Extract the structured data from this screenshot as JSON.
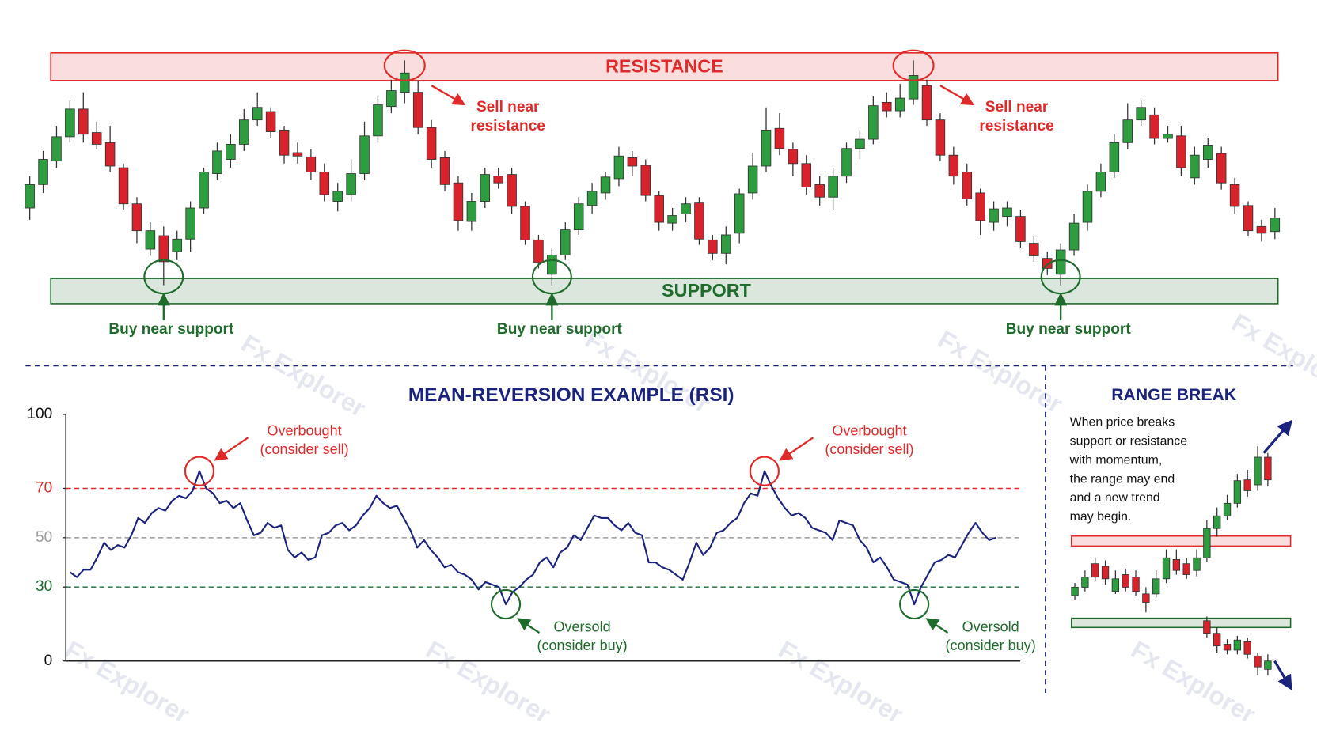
{
  "chart_data": [
    {
      "type": "candlestick",
      "open": [
        114,
        142,
        170,
        199,
        232,
        204,
        192,
        162,
        119,
        65,
        81,
        62,
        77,
        114,
        155,
        172,
        190,
        219,
        229,
        207,
        180,
        175,
        157,
        122,
        130,
        155,
        200,
        235,
        252,
        252,
        210,
        174,
        144,
        98,
        122,
        152,
        154,
        116,
        76,
        35,
        58,
        88,
        117,
        132,
        149,
        174,
        165,
        129,
        96,
        107,
        120,
        76,
        60,
        84,
        132,
        164,
        209,
        184,
        167,
        142,
        127,
        152,
        185,
        196,
        240,
        230,
        244,
        260,
        219,
        177,
        157,
        132,
        97,
        104,
        104,
        72,
        54,
        35,
        64,
        97,
        134,
        157,
        192,
        219,
        225,
        197,
        200,
        150,
        172,
        179,
        142,
        117,
        92,
        86
      ],
      "high": [
        152,
        182,
        212,
        242,
        252,
        217,
        212,
        167,
        127,
        97,
        92,
        87,
        122,
        162,
        192,
        202,
        232,
        252,
        234,
        212,
        192,
        184,
        167,
        144,
        172,
        217,
        247,
        267,
        290,
        266,
        219,
        182,
        152,
        132,
        162,
        162,
        162,
        122,
        82,
        67,
        97,
        127,
        144,
        157,
        187,
        182,
        172,
        134,
        114,
        127,
        127,
        82,
        92,
        137,
        180,
        234,
        227,
        192,
        177,
        152,
        162,
        192,
        207,
        247,
        252,
        262,
        290,
        267,
        227,
        187,
        167,
        137,
        122,
        122,
        112,
        80,
        62,
        72,
        107,
        142,
        167,
        202,
        239,
        242,
        234,
        212,
        212,
        187,
        197,
        187,
        150,
        122,
        100,
        114
      ],
      "low": [
        100,
        132,
        162,
        192,
        192,
        184,
        157,
        112,
        72,
        57,
        22,
        52,
        62,
        107,
        147,
        162,
        182,
        212,
        197,
        167,
        167,
        147,
        122,
        110,
        122,
        147,
        192,
        227,
        239,
        202,
        162,
        134,
        87,
        87,
        114,
        137,
        107,
        70,
        42,
        22,
        52,
        82,
        107,
        124,
        140,
        152,
        122,
        87,
        87,
        97,
        70,
        52,
        47,
        72,
        124,
        157,
        177,
        152,
        130,
        117,
        112,
        144,
        172,
        190,
        222,
        222,
        237,
        212,
        170,
        142,
        117,
        82,
        87,
        92,
        67,
        50,
        34,
        22,
        57,
        87,
        127,
        150,
        184,
        212,
        190,
        192,
        152,
        142,
        162,
        136,
        107,
        80,
        74,
        77
      ],
      "close": [
        142,
        172,
        199,
        232,
        202,
        190,
        164,
        119,
        87,
        87,
        50,
        77,
        114,
        157,
        182,
        190,
        219,
        234,
        205,
        177,
        176,
        157,
        130,
        134,
        155,
        200,
        237,
        254,
        275,
        210,
        172,
        142,
        99,
        122,
        154,
        144,
        116,
        76,
        49,
        58,
        88,
        119,
        134,
        151,
        176,
        164,
        129,
        97,
        105,
        119,
        77,
        60,
        82,
        131,
        164,
        207,
        185,
        167,
        139,
        127,
        152,
        185,
        196,
        236,
        230,
        245,
        272,
        219,
        177,
        152,
        125,
        99,
        113,
        114,
        74,
        57,
        42,
        64,
        96,
        134,
        157,
        192,
        219,
        234,
        197,
        202,
        162,
        177,
        189,
        144,
        116,
        87,
        84,
        102
      ],
      "ylim": [
        0,
        299
      ],
      "up_color": "#2e9d3f",
      "down_color": "#d8232c",
      "bands": [
        {
          "label": "RESISTANCE",
          "range": [
            266,
            299
          ],
          "color": "#e02a2a",
          "annotations": {
            "text": [
              "Sell near",
              "resistance"
            ],
            "at": [
              28,
              66
            ]
          }
        },
        {
          "label": "SUPPORT",
          "range": [
            0,
            30
          ],
          "color": "#1e6b2b",
          "annotations": {
            "text": [
              "Buy near support"
            ],
            "at": [
              10,
              39,
              77
            ]
          }
        }
      ]
    },
    {
      "type": "line",
      "title": "MEAN-REVERSION EXAMPLE (RSI)",
      "values": [
        36,
        34,
        37,
        37,
        42,
        48,
        45,
        47,
        46,
        51,
        58,
        56,
        60,
        62,
        61,
        65,
        67,
        66,
        69,
        77,
        70,
        68,
        64,
        65,
        62,
        64,
        57,
        51,
        52,
        56,
        54,
        55,
        45,
        42,
        44,
        41,
        42,
        51,
        52,
        55,
        56,
        53,
        55,
        59,
        62,
        67,
        64,
        62,
        63,
        58,
        53,
        46,
        49,
        45,
        42,
        38,
        39,
        36,
        35,
        33,
        29,
        32,
        31,
        30,
        23,
        28,
        30,
        33,
        35,
        40,
        42,
        38,
        44,
        46,
        51,
        49,
        54,
        59,
        58,
        58,
        55,
        53,
        56,
        52,
        51,
        40,
        40,
        38,
        37,
        35,
        33,
        40,
        48,
        43,
        46,
        52,
        53,
        56,
        58,
        64,
        68,
        67,
        77,
        71,
        66,
        62,
        59,
        60,
        58,
        54,
        53,
        52,
        49,
        57,
        56,
        55,
        49,
        46,
        40,
        42,
        38,
        33,
        32,
        31,
        23,
        30,
        35,
        40,
        41,
        43,
        42,
        47,
        52,
        56,
        52,
        49,
        50
      ],
      "color": "#1a237e",
      "ylim": [
        0,
        100
      ],
      "yticks": [
        0,
        30,
        50,
        70,
        100
      ],
      "levels": [
        {
          "value": 70,
          "color": "#e02a2a"
        },
        {
          "value": 50,
          "color": "#9a9a9a"
        },
        {
          "value": 30,
          "color": "#1e6b2b"
        }
      ],
      "annotations": [
        {
          "text": [
            "Overbought",
            "(consider sell)"
          ],
          "at": [
            19,
            102
          ],
          "color": "#e02a2a"
        },
        {
          "text": [
            "Oversold",
            "(consider buy)"
          ],
          "at": [
            64,
            124
          ],
          "color": "#1e6b2b"
        }
      ]
    },
    {
      "type": "candlestick",
      "title": "RANGE BREAK",
      "description": [
        "When price breaks",
        "support or resistance",
        "with momentum,",
        "the range may end",
        "and a new trend",
        "may begin."
      ],
      "series": [
        {
          "x": [
            0,
            1,
            2,
            3,
            4,
            5,
            6,
            7,
            8,
            9,
            10,
            11,
            12,
            13,
            14,
            15,
            16,
            17,
            18,
            19
          ],
          "open": [
            110,
            120,
            148,
            145,
            115,
            135,
            132,
            112,
            112,
            130,
            153,
            148,
            140,
            155,
            190,
            205,
            220,
            248,
            242,
            275
          ],
          "high": [
            125,
            140,
            155,
            152,
            140,
            142,
            140,
            120,
            140,
            165,
            165,
            155,
            165,
            200,
            215,
            230,
            255,
            260,
            288,
            280
          ],
          "low": [
            105,
            115,
            128,
            123,
            112,
            115,
            110,
            90,
            108,
            125,
            135,
            130,
            133,
            150,
            180,
            200,
            215,
            228,
            235,
            240
          ],
          "close": [
            120,
            132,
            132,
            130,
            130,
            120,
            115,
            102,
            130,
            155,
            140,
            135,
            155,
            190,
            205,
            220,
            247,
            235,
            275,
            248
          ]
        },
        {
          "x": [
            13,
            14,
            15,
            16,
            17,
            18,
            19
          ],
          "open": [
            80,
            65,
            52,
            45,
            55,
            38,
            22
          ],
          "high": [
            85,
            72,
            58,
            62,
            60,
            42,
            40
          ],
          "low": [
            60,
            42,
            40,
            40,
            35,
            15,
            15
          ],
          "close": [
            65,
            50,
            45,
            57,
            40,
            25,
            32
          ]
        }
      ],
      "ylim": [
        0,
        330
      ],
      "up_color": "#2e9d3f",
      "down_color": "#d8232c",
      "bands": [
        {
          "range": [
            169,
            181
          ],
          "color": "#e02a2a"
        },
        {
          "range": [
            72,
            83
          ],
          "color": "#1e6b2b"
        }
      ]
    }
  ],
  "watermark": "Fx Explorer"
}
